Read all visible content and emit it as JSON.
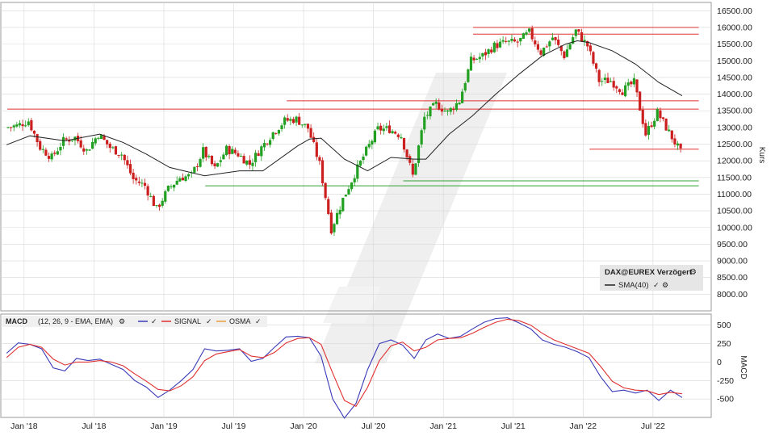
{
  "chart_data": [
    {
      "type": "candlestick",
      "panel": "price",
      "legend": {
        "title": "DAX@EUREX Verzögert",
        "items": [
          {
            "name": "SMA(40)",
            "color": "#222222"
          }
        ],
        "placement": "bottom-right"
      },
      "ylabel": "Kurs",
      "yticks": [
        8000,
        8500,
        9000,
        9500,
        10000,
        10500,
        11000,
        11500,
        12000,
        12500,
        13000,
        13500,
        14000,
        14500,
        15000,
        15500,
        16000,
        16500
      ],
      "ytick_labels": [
        "8000.00",
        "8500.00",
        "9000.00",
        "9500.00",
        "10000.00",
        "10500.00",
        "11000.00",
        "11500.00",
        "12000.00",
        "12500.00",
        "13000.00",
        "13500.00",
        "14000.00",
        "14500.00",
        "15000.00",
        "15500.00",
        "16000.00",
        "16500.00"
      ],
      "ylim": [
        7500,
        16750
      ],
      "x_range": [
        "2017-11",
        "2022-11"
      ],
      "grid": true,
      "close_series": [
        {
          "x": "2017-11",
          "y": 13000
        },
        {
          "x": "2017-12",
          "y": 13050
        },
        {
          "x": "2018-01",
          "y": 13200
        },
        {
          "x": "2018-02",
          "y": 12400
        },
        {
          "x": "2018-03",
          "y": 12100
        },
        {
          "x": "2018-04",
          "y": 12600
        },
        {
          "x": "2018-05",
          "y": 12700
        },
        {
          "x": "2018-06",
          "y": 12300
        },
        {
          "x": "2018-07",
          "y": 12800
        },
        {
          "x": "2018-08",
          "y": 12400
        },
        {
          "x": "2018-09",
          "y": 12200
        },
        {
          "x": "2018-10",
          "y": 11450
        },
        {
          "x": "2018-11",
          "y": 11250
        },
        {
          "x": "2018-12",
          "y": 10550
        },
        {
          "x": "2019-01",
          "y": 11150
        },
        {
          "x": "2019-02",
          "y": 11500
        },
        {
          "x": "2019-03",
          "y": 11550
        },
        {
          "x": "2019-04",
          "y": 12300
        },
        {
          "x": "2019-05",
          "y": 11750
        },
        {
          "x": "2019-06",
          "y": 12350
        },
        {
          "x": "2019-07",
          "y": 12200
        },
        {
          "x": "2019-08",
          "y": 11900
        },
        {
          "x": "2019-09",
          "y": 12400
        },
        {
          "x": "2019-10",
          "y": 12850
        },
        {
          "x": "2019-11",
          "y": 13200
        },
        {
          "x": "2019-12",
          "y": 13250
        },
        {
          "x": "2020-01",
          "y": 12980
        },
        {
          "x": "2020-02",
          "y": 11900
        },
        {
          "x": "2020-03",
          "y": 9950
        },
        {
          "x": "2020-04",
          "y": 10850
        },
        {
          "x": "2020-05",
          "y": 11600
        },
        {
          "x": "2020-06",
          "y": 12300
        },
        {
          "x": "2020-07",
          "y": 12950
        },
        {
          "x": "2020-08",
          "y": 12950
        },
        {
          "x": "2020-09",
          "y": 12750
        },
        {
          "x": "2020-10",
          "y": 11550
        },
        {
          "x": "2020-11",
          "y": 13300
        },
        {
          "x": "2020-12",
          "y": 13700
        },
        {
          "x": "2021-01",
          "y": 13450
        },
        {
          "x": "2021-02",
          "y": 13800
        },
        {
          "x": "2021-03",
          "y": 15000
        },
        {
          "x": "2021-04",
          "y": 15150
        },
        {
          "x": "2021-05",
          "y": 15450
        },
        {
          "x": "2021-06",
          "y": 15550
        },
        {
          "x": "2021-07",
          "y": 15550
        },
        {
          "x": "2021-08",
          "y": 15850
        },
        {
          "x": "2021-09",
          "y": 15250
        },
        {
          "x": "2021-10",
          "y": 15700
        },
        {
          "x": "2021-11",
          "y": 15150
        },
        {
          "x": "2021-12",
          "y": 15900
        },
        {
          "x": "2022-01",
          "y": 15450
        },
        {
          "x": "2022-02",
          "y": 14400
        },
        {
          "x": "2022-03",
          "y": 14400
        },
        {
          "x": "2022-04",
          "y": 14100
        },
        {
          "x": "2022-05",
          "y": 14350
        },
        {
          "x": "2022-06",
          "y": 12800
        },
        {
          "x": "2022-07",
          "y": 13450
        },
        {
          "x": "2022-08",
          "y": 12850
        },
        {
          "x": "2022-09",
          "y": 12250
        }
      ],
      "sma40": [
        {
          "x": "2017-11",
          "y": 12480
        },
        {
          "x": "2018-01",
          "y": 12750
        },
        {
          "x": "2018-04",
          "y": 12600
        },
        {
          "x": "2018-07",
          "y": 12800
        },
        {
          "x": "2018-09",
          "y": 12550
        },
        {
          "x": "2018-11",
          "y": 12200
        },
        {
          "x": "2019-01",
          "y": 11800
        },
        {
          "x": "2019-04",
          "y": 11550
        },
        {
          "x": "2019-07",
          "y": 11700
        },
        {
          "x": "2019-09",
          "y": 11700
        },
        {
          "x": "2019-12",
          "y": 12450
        },
        {
          "x": "2020-01",
          "y": 12650
        },
        {
          "x": "2020-02",
          "y": 12680
        },
        {
          "x": "2020-04",
          "y": 12050
        },
        {
          "x": "2020-06",
          "y": 11700
        },
        {
          "x": "2020-08",
          "y": 12100
        },
        {
          "x": "2020-10",
          "y": 12050
        },
        {
          "x": "2020-11",
          "y": 12050
        },
        {
          "x": "2021-01",
          "y": 12800
        },
        {
          "x": "2021-03",
          "y": 13350
        },
        {
          "x": "2021-05",
          "y": 14000
        },
        {
          "x": "2021-07",
          "y": 14600
        },
        {
          "x": "2021-09",
          "y": 15150
        },
        {
          "x": "2021-11",
          "y": 15500
        },
        {
          "x": "2021-12",
          "y": 15600
        },
        {
          "x": "2022-01",
          "y": 15550
        },
        {
          "x": "2022-03",
          "y": 15300
        },
        {
          "x": "2022-05",
          "y": 14900
        },
        {
          "x": "2022-07",
          "y": 14350
        },
        {
          "x": "2022-09",
          "y": 13950
        }
      ],
      "horizontal_lines": [
        {
          "y": 16000,
          "color": "#e03030",
          "x_from": "2021-03",
          "x_to": "2022-11"
        },
        {
          "y": 15800,
          "color": "#e03030",
          "x_from": "2021-03",
          "x_to": "2022-11"
        },
        {
          "y": 13800,
          "color": "#e03030",
          "x_from": "2019-11",
          "x_to": "2022-11"
        },
        {
          "y": 13550,
          "color": "#e03030",
          "x_from": "2017-11",
          "x_to": "2022-11"
        },
        {
          "y": 12350,
          "color": "#e03030",
          "x_from": "2022-01",
          "x_to": "2022-11"
        },
        {
          "y": 11400,
          "color": "#30a030",
          "x_from": "2020-09",
          "x_to": "2022-11"
        },
        {
          "y": 11250,
          "color": "#30a030",
          "x_from": "2019-04",
          "x_to": "2022-11"
        }
      ]
    },
    {
      "type": "line",
      "panel": "indicator",
      "title": "MACD",
      "params": "(12, 26, 9 - EMA, EMA)",
      "ylabel": "MACD",
      "yticks": [
        500,
        250,
        0,
        -250,
        -500
      ],
      "ytick_labels": [
        "500",
        "250",
        "0",
        "-250",
        "-500"
      ],
      "ylim": [
        -750,
        650
      ],
      "series": [
        {
          "name": "MACD",
          "color": "#3a3ab8",
          "points": [
            {
              "x": "2017-11",
              "y": 120
            },
            {
              "x": "2017-12",
              "y": 260
            },
            {
              "x": "2018-01",
              "y": 240
            },
            {
              "x": "2018-02",
              "y": 180
            },
            {
              "x": "2018-03",
              "y": -80
            },
            {
              "x": "2018-04",
              "y": -120
            },
            {
              "x": "2018-05",
              "y": 50
            },
            {
              "x": "2018-06",
              "y": 20
            },
            {
              "x": "2018-07",
              "y": 40
            },
            {
              "x": "2018-08",
              "y": -30
            },
            {
              "x": "2018-09",
              "y": -100
            },
            {
              "x": "2018-10",
              "y": -250
            },
            {
              "x": "2018-11",
              "y": -340
            },
            {
              "x": "2018-12",
              "y": -480
            },
            {
              "x": "2019-01",
              "y": -380
            },
            {
              "x": "2019-02",
              "y": -250
            },
            {
              "x": "2019-03",
              "y": -100
            },
            {
              "x": "2019-04",
              "y": 180
            },
            {
              "x": "2019-05",
              "y": 150
            },
            {
              "x": "2019-06",
              "y": 160
            },
            {
              "x": "2019-07",
              "y": 180
            },
            {
              "x": "2019-08",
              "y": 10
            },
            {
              "x": "2019-09",
              "y": 50
            },
            {
              "x": "2019-10",
              "y": 200
            },
            {
              "x": "2019-11",
              "y": 340
            },
            {
              "x": "2019-12",
              "y": 350
            },
            {
              "x": "2020-01",
              "y": 330
            },
            {
              "x": "2020-02",
              "y": 80
            },
            {
              "x": "2020-03",
              "y": -500
            },
            {
              "x": "2020-04",
              "y": -760
            },
            {
              "x": "2020-05",
              "y": -560
            },
            {
              "x": "2020-06",
              "y": -100
            },
            {
              "x": "2020-07",
              "y": 250
            },
            {
              "x": "2020-08",
              "y": 300
            },
            {
              "x": "2020-09",
              "y": 230
            },
            {
              "x": "2020-10",
              "y": 50
            },
            {
              "x": "2020-11",
              "y": 300
            },
            {
              "x": "2020-12",
              "y": 380
            },
            {
              "x": "2021-01",
              "y": 320
            },
            {
              "x": "2021-02",
              "y": 350
            },
            {
              "x": "2021-03",
              "y": 450
            },
            {
              "x": "2021-04",
              "y": 540
            },
            {
              "x": "2021-05",
              "y": 590
            },
            {
              "x": "2021-06",
              "y": 600
            },
            {
              "x": "2021-07",
              "y": 530
            },
            {
              "x": "2021-08",
              "y": 450
            },
            {
              "x": "2021-09",
              "y": 300
            },
            {
              "x": "2021-10",
              "y": 240
            },
            {
              "x": "2021-11",
              "y": 200
            },
            {
              "x": "2021-12",
              "y": 140
            },
            {
              "x": "2022-01",
              "y": 60
            },
            {
              "x": "2022-02",
              "y": -200
            },
            {
              "x": "2022-03",
              "y": -400
            },
            {
              "x": "2022-04",
              "y": -380
            },
            {
              "x": "2022-05",
              "y": -420
            },
            {
              "x": "2022-06",
              "y": -380
            },
            {
              "x": "2022-07",
              "y": -520
            },
            {
              "x": "2022-08",
              "y": -380
            },
            {
              "x": "2022-09",
              "y": -480
            }
          ]
        },
        {
          "name": "SIGNAL",
          "color": "#e03030",
          "points": [
            {
              "x": "2017-11",
              "y": 60
            },
            {
              "x": "2017-12",
              "y": 200
            },
            {
              "x": "2018-01",
              "y": 240
            },
            {
              "x": "2018-02",
              "y": 200
            },
            {
              "x": "2018-03",
              "y": 40
            },
            {
              "x": "2018-04",
              "y": -40
            },
            {
              "x": "2018-05",
              "y": 0
            },
            {
              "x": "2018-06",
              "y": 0
            },
            {
              "x": "2018-07",
              "y": 20
            },
            {
              "x": "2018-08",
              "y": 0
            },
            {
              "x": "2018-09",
              "y": -50
            },
            {
              "x": "2018-10",
              "y": -160
            },
            {
              "x": "2018-11",
              "y": -260
            },
            {
              "x": "2018-12",
              "y": -370
            },
            {
              "x": "2019-01",
              "y": -390
            },
            {
              "x": "2019-02",
              "y": -320
            },
            {
              "x": "2019-03",
              "y": -200
            },
            {
              "x": "2019-04",
              "y": 20
            },
            {
              "x": "2019-05",
              "y": 110
            },
            {
              "x": "2019-06",
              "y": 140
            },
            {
              "x": "2019-07",
              "y": 170
            },
            {
              "x": "2019-08",
              "y": 80
            },
            {
              "x": "2019-09",
              "y": 60
            },
            {
              "x": "2019-10",
              "y": 130
            },
            {
              "x": "2019-11",
              "y": 260
            },
            {
              "x": "2019-12",
              "y": 320
            },
            {
              "x": "2020-01",
              "y": 330
            },
            {
              "x": "2020-02",
              "y": 240
            },
            {
              "x": "2020-03",
              "y": -150
            },
            {
              "x": "2020-04",
              "y": -520
            },
            {
              "x": "2020-05",
              "y": -600
            },
            {
              "x": "2020-06",
              "y": -340
            },
            {
              "x": "2020-07",
              "y": 20
            },
            {
              "x": "2020-08",
              "y": 220
            },
            {
              "x": "2020-09",
              "y": 270
            },
            {
              "x": "2020-10",
              "y": 150
            },
            {
              "x": "2020-11",
              "y": 200
            },
            {
              "x": "2020-12",
              "y": 300
            },
            {
              "x": "2021-01",
              "y": 320
            },
            {
              "x": "2021-02",
              "y": 330
            },
            {
              "x": "2021-03",
              "y": 390
            },
            {
              "x": "2021-04",
              "y": 470
            },
            {
              "x": "2021-05",
              "y": 540
            },
            {
              "x": "2021-06",
              "y": 580
            },
            {
              "x": "2021-07",
              "y": 560
            },
            {
              "x": "2021-08",
              "y": 500
            },
            {
              "x": "2021-09",
              "y": 390
            },
            {
              "x": "2021-10",
              "y": 300
            },
            {
              "x": "2021-11",
              "y": 240
            },
            {
              "x": "2021-12",
              "y": 180
            },
            {
              "x": "2022-01",
              "y": 120
            },
            {
              "x": "2022-02",
              "y": -60
            },
            {
              "x": "2022-03",
              "y": -260
            },
            {
              "x": "2022-04",
              "y": -350
            },
            {
              "x": "2022-05",
              "y": -380
            },
            {
              "x": "2022-06",
              "y": -390
            },
            {
              "x": "2022-07",
              "y": -440
            },
            {
              "x": "2022-08",
              "y": -410
            },
            {
              "x": "2022-09",
              "y": -430
            }
          ]
        },
        {
          "name": "OSMA",
          "color": "#e8a040",
          "points": []
        }
      ]
    }
  ],
  "xaxis": {
    "ticks": [
      {
        "x": "2018-01",
        "label": "Jan '18"
      },
      {
        "x": "2018-07",
        "label": "Jul '18"
      },
      {
        "x": "2019-01",
        "label": "Jan '19"
      },
      {
        "x": "2019-07",
        "label": "Jul '19"
      },
      {
        "x": "2020-01",
        "label": "Jan '20"
      },
      {
        "x": "2020-07",
        "label": "Jul '20"
      },
      {
        "x": "2021-01",
        "label": "Jan '21"
      },
      {
        "x": "2021-07",
        "label": "Jul '21"
      },
      {
        "x": "2022-01",
        "label": "Jan '22"
      },
      {
        "x": "2022-07",
        "label": "Jul '22"
      }
    ]
  },
  "colors": {
    "up": "#21a021",
    "down": "#cc1f1f",
    "sma": "#222222",
    "grid": "#d8d8d8",
    "bg": "#ffffff"
  }
}
